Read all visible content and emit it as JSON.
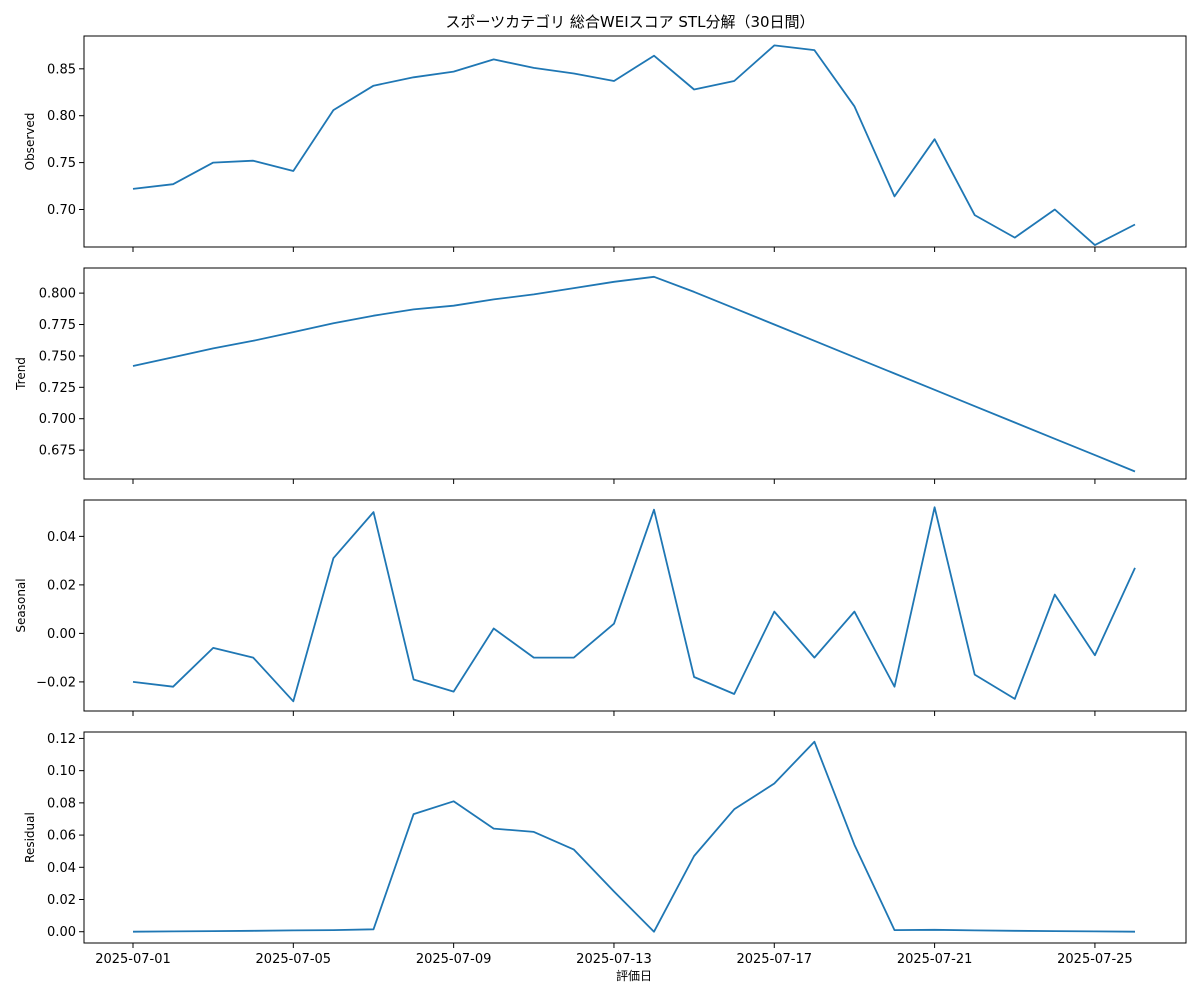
{
  "chart_data": {
    "type": "line",
    "title": "スポーツカテゴリ 総合WEIスコア STL分解（30日間）",
    "xlabel": "評価日",
    "x": [
      "2025-07-01",
      "2025-07-02",
      "2025-07-03",
      "2025-07-04",
      "2025-07-05",
      "2025-07-06",
      "2025-07-07",
      "2025-07-08",
      "2025-07-09",
      "2025-07-10",
      "2025-07-11",
      "2025-07-12",
      "2025-07-13",
      "2025-07-14",
      "2025-07-15",
      "2025-07-16",
      "2025-07-17",
      "2025-07-18",
      "2025-07-19",
      "2025-07-20",
      "2025-07-21",
      "2025-07-22",
      "2025-07-23",
      "2025-07-24",
      "2025-07-25",
      "2025-07-26"
    ],
    "x_ticks": [
      "2025-07-01",
      "2025-07-05",
      "2025-07-09",
      "2025-07-13",
      "2025-07-17",
      "2025-07-21",
      "2025-07-25"
    ],
    "line_color": "#1f77b4",
    "grid": false,
    "panels": [
      {
        "ylabel": "Observed",
        "ylim": [
          0.66,
          0.885
        ],
        "yticks": [
          "0.70",
          "0.75",
          "0.80",
          "0.85"
        ],
        "values": [
          0.722,
          0.727,
          0.75,
          0.752,
          0.741,
          0.806,
          0.832,
          0.841,
          0.847,
          0.86,
          0.851,
          0.845,
          0.837,
          0.864,
          0.828,
          0.837,
          0.875,
          0.87,
          0.81,
          0.714,
          0.775,
          0.694,
          0.67,
          0.7,
          0.662,
          0.684
        ]
      },
      {
        "ylabel": "Trend",
        "ylim": [
          0.652,
          0.82
        ],
        "yticks": [
          "0.675",
          "0.700",
          "0.725",
          "0.750",
          "0.775",
          "0.800"
        ],
        "values": [
          0.742,
          0.749,
          0.756,
          0.762,
          0.769,
          0.776,
          0.782,
          0.787,
          0.79,
          0.795,
          0.799,
          0.804,
          0.809,
          0.813,
          0.801,
          0.788,
          0.775,
          0.762,
          0.749,
          0.736,
          0.723,
          0.71,
          0.697,
          0.684,
          0.671,
          0.658
        ]
      },
      {
        "ylabel": "Seasonal",
        "ylim": [
          -0.032,
          0.055
        ],
        "yticks": [
          "−0.02",
          "0.00",
          "0.02",
          "0.04"
        ],
        "values": [
          -0.02,
          -0.022,
          -0.006,
          -0.01,
          -0.028,
          0.031,
          0.05,
          -0.019,
          -0.024,
          0.002,
          -0.01,
          -0.01,
          0.004,
          0.051,
          -0.018,
          -0.025,
          0.009,
          -0.01,
          0.009,
          -0.022,
          0.052,
          -0.017,
          -0.027,
          0.016,
          -0.009,
          0.027
        ]
      },
      {
        "ylabel": "Residual",
        "ylim": [
          -0.007,
          0.124
        ],
        "yticks": [
          "0.00",
          "0.02",
          "0.04",
          "0.06",
          "0.08",
          "0.10",
          "0.12"
        ],
        "values": [
          0.0,
          0.0002,
          0.0004,
          0.0006,
          0.0008,
          0.001,
          0.0015,
          0.073,
          0.081,
          0.064,
          0.062,
          0.051,
          0.025,
          0.0,
          0.047,
          0.076,
          0.092,
          0.118,
          0.054,
          0.001,
          0.0012,
          0.0008,
          0.0006,
          0.0004,
          0.0002,
          0.0
        ]
      }
    ]
  }
}
